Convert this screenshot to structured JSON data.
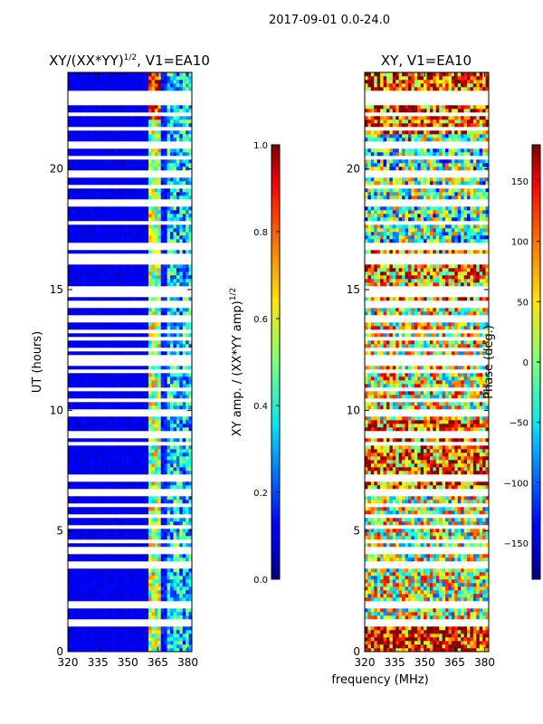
{
  "suptitle": "2017-09-01 0.0-24.0",
  "shared_xlabel": "frequency (MHz)",
  "chart_data": [
    {
      "type": "heatmap",
      "title": "XY/(XX*YY)",
      "title_exponent": "1/2",
      "title_suffix": ", V1=EA10",
      "xlabel": "frequency (MHz)",
      "ylabel": "UT (hours)",
      "xlim": [
        320,
        382
      ],
      "ylim": [
        0,
        24
      ],
      "xticks": [
        320,
        335,
        350,
        365,
        380
      ],
      "xtick_labels": [
        "320",
        "335",
        "350",
        "365",
        "380"
      ],
      "yticks": [
        0,
        5,
        10,
        15,
        20
      ],
      "ytick_labels": [
        "0",
        "5",
        "10",
        "15",
        "20"
      ],
      "colormap": "jet",
      "colorbar": {
        "label": "XY amp. / (XX*YY amp)",
        "label_exponent": "1/2",
        "vmin": 0.0,
        "vmax": 1.0,
        "ticks": [
          0.0,
          0.2,
          0.4,
          0.6,
          0.8,
          1.0
        ],
        "tick_labels": [
          "0.0",
          "0.2",
          "0.4",
          "0.6",
          "0.8",
          "1.0"
        ]
      },
      "description": "Mostly near 0 (dark blue) across 320-360 MHz; elevated values (0.3-0.9) in channels near 362-382 MHz; many time rows flagged (white)."
    },
    {
      "type": "heatmap",
      "title": "XY, V1=EA10",
      "xlabel": "frequency (MHz)",
      "ylabel": "",
      "xlim": [
        320,
        382
      ],
      "ylim": [
        0,
        24
      ],
      "xticks": [
        320,
        335,
        350,
        365,
        380
      ],
      "xtick_labels": [
        "320",
        "335",
        "350",
        "365",
        "380"
      ],
      "yticks": [
        0,
        5,
        10,
        15,
        20
      ],
      "ytick_labels": [
        "0",
        "5",
        "10",
        "15",
        "20"
      ],
      "colormap": "jet",
      "colorbar": {
        "label": "Phase (deg.)",
        "vmin": -180,
        "vmax": 180,
        "ticks": [
          -150,
          -100,
          -50,
          0,
          50,
          100,
          150
        ],
        "tick_labels": [
          "−150",
          "−100",
          "−50",
          "0",
          "50",
          "100",
          "150"
        ]
      },
      "description": "Noisy phase spanning full range; orange-red near 0-1.2 h and 6.5-9.5 h, green/cyan dominant 17-21 h, red/orange near 22-24 h; flagged rows white."
    }
  ],
  "flagged_ut_rows": [
    1.2,
    1.9,
    2.0,
    3.6,
    4.2,
    4.6,
    5.2,
    5.6,
    6.1,
    6.6,
    7.2,
    8.6,
    9.0,
    9.9,
    10.4,
    10.9,
    11.6,
    12.0,
    12.2,
    12.5,
    13.0,
    13.3,
    13.8,
    14.3,
    14.5,
    14.8,
    15.0,
    16.2,
    16.4,
    16.8,
    17.8,
    18.6,
    19.3,
    19.8,
    20.5,
    21.0,
    21.7,
    22.3,
    22.8,
    23.1
  ]
}
